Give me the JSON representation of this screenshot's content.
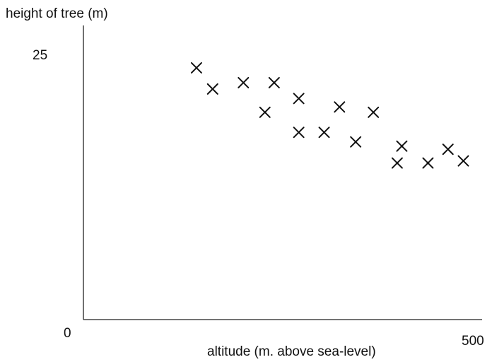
{
  "chart_data": {
    "type": "scatter",
    "title": "",
    "ylabel": "height of tree (m)",
    "xlabel": "altitude (m. above sea-level)",
    "xlim": [
      0,
      500
    ],
    "ylim": [
      0,
      25
    ],
    "x_tick_labels": [
      "0",
      "500"
    ],
    "y_tick_labels": [
      "25"
    ],
    "grid": false,
    "legend": "none",
    "marker": "x",
    "marker_color": "#111111",
    "points": [
      {
        "x": 147,
        "y": 23.8
      },
      {
        "x": 168,
        "y": 21.8
      },
      {
        "x": 208,
        "y": 22.4
      },
      {
        "x": 236,
        "y": 19.6
      },
      {
        "x": 248,
        "y": 22.4
      },
      {
        "x": 280,
        "y": 20.9
      },
      {
        "x": 280,
        "y": 17.7
      },
      {
        "x": 313,
        "y": 17.7
      },
      {
        "x": 333,
        "y": 20.1
      },
      {
        "x": 354,
        "y": 16.8
      },
      {
        "x": 377,
        "y": 19.6
      },
      {
        "x": 408,
        "y": 14.8
      },
      {
        "x": 414,
        "y": 16.4
      },
      {
        "x": 448,
        "y": 14.8
      },
      {
        "x": 474,
        "y": 16.1
      },
      {
        "x": 494,
        "y": 15.0
      }
    ]
  }
}
